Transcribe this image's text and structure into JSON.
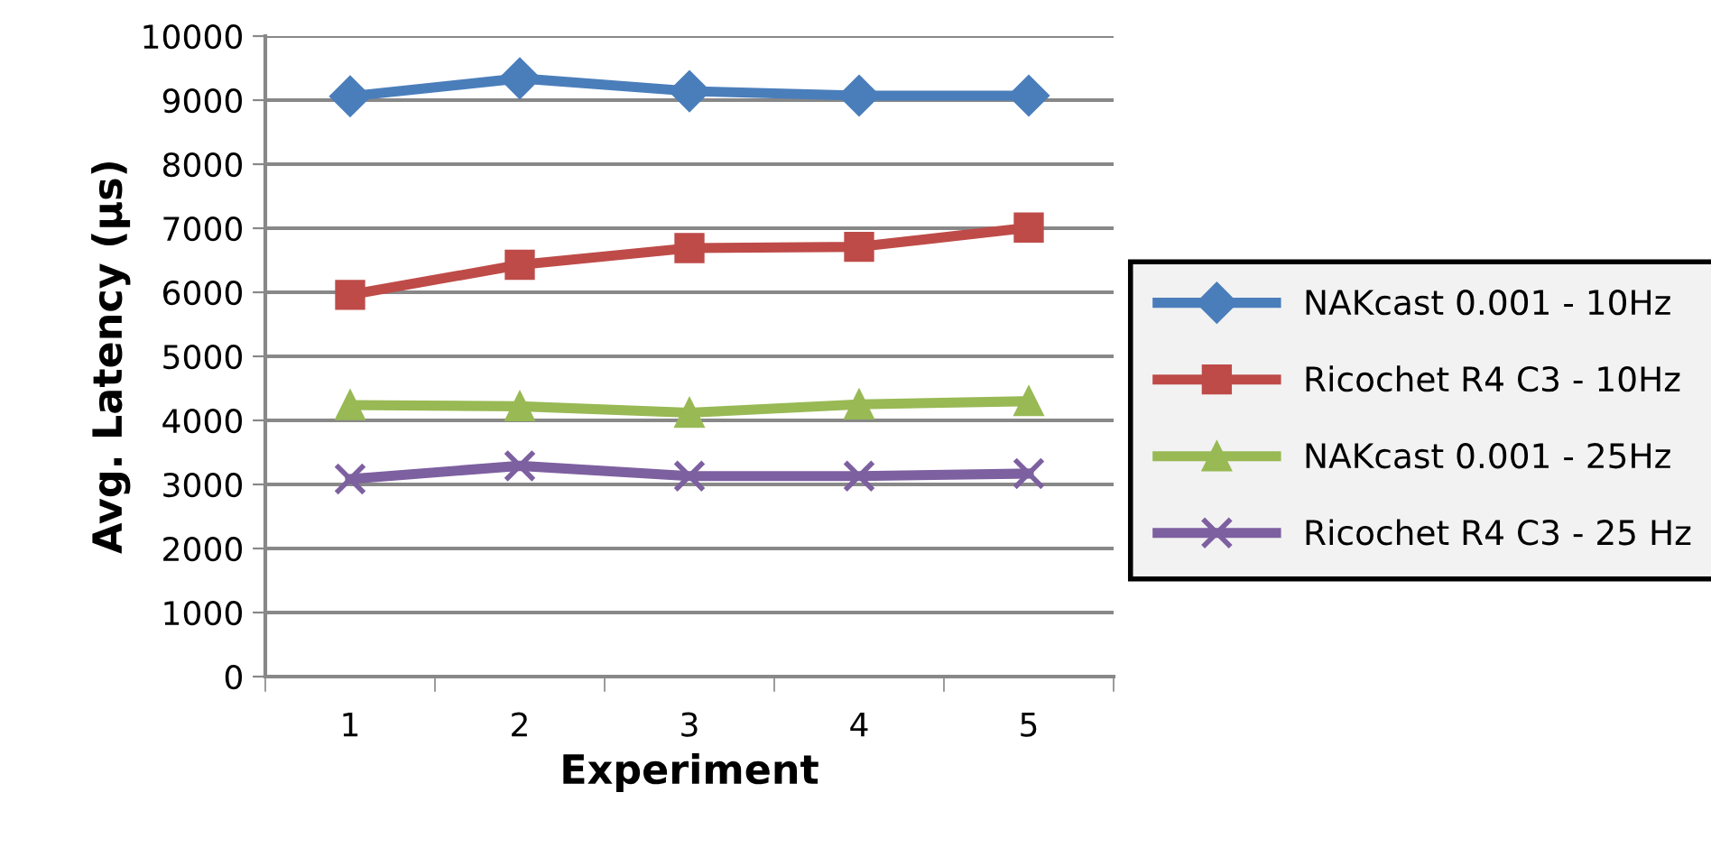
{
  "chart_data": {
    "type": "line",
    "xlabel": "Experiment",
    "ylabel": "Avg. Latency (µs)",
    "categories": [
      "1",
      "2",
      "3",
      "4",
      "5"
    ],
    "series": [
      {
        "name": "NAKcast 0.001 - 10Hz",
        "color": "#4a7ebb",
        "marker": "diamond",
        "values": [
          9060,
          9340,
          9140,
          9070,
          9070
        ]
      },
      {
        "name": "Ricochet R4 C3 - 10Hz",
        "color": "#be4b48",
        "marker": "square",
        "values": [
          5960,
          6430,
          6690,
          6710,
          7010
        ]
      },
      {
        "name": "NAKcast 0.001 - 25Hz",
        "color": "#98b954",
        "marker": "triangle",
        "values": [
          4240,
          4220,
          4120,
          4250,
          4300
        ]
      },
      {
        "name": "Ricochet R4 C3 - 25 Hz",
        "color": "#7d60a0",
        "marker": "cross",
        "values": [
          3085,
          3290,
          3130,
          3130,
          3170
        ]
      }
    ],
    "ylim": [
      0,
      10000
    ],
    "yticks": [
      0,
      1000,
      2000,
      3000,
      4000,
      5000,
      6000,
      7000,
      8000,
      9000,
      10000
    ],
    "grid": "y",
    "legend": "right",
    "line_style": "solid"
  }
}
